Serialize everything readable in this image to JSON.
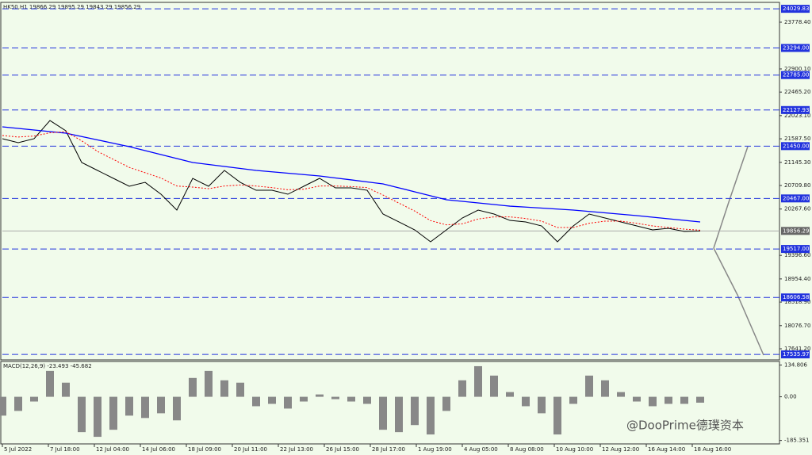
{
  "chart_data": [
    {
      "type": "line",
      "title": "HK50,H1  19866.29 19895.29 19843.29 19856.29",
      "xlim": [
        0,
        49
      ],
      "xticks": [
        {
          "value": 0,
          "label": "5 Jul 2022"
        },
        {
          "value": 2.9,
          "label": "7 Jul 18:00"
        },
        {
          "value": 5.8,
          "label": "12 Jul 04:00"
        },
        {
          "value": 8.7,
          "label": "14 Jul 06:00"
        },
        {
          "value": 11.6,
          "label": "18 Jul 09:00"
        },
        {
          "value": 14.5,
          "label": "20 Jul 11:00"
        },
        {
          "value": 17.4,
          "label": "22 Jul 13:00"
        },
        {
          "value": 20.3,
          "label": "26 Jul 15:00"
        },
        {
          "value": 23.2,
          "label": "28 Jul 17:00"
        },
        {
          "value": 26.1,
          "label": "1 Aug 19:00"
        },
        {
          "value": 29,
          "label": "4 Aug 05:00"
        },
        {
          "value": 31.9,
          "label": "8 Aug 08:00"
        },
        {
          "value": 34.8,
          "label": "10 Aug 10:00"
        },
        {
          "value": 37.7,
          "label": "12 Aug 12:00"
        },
        {
          "value": 40.6,
          "label": "16 Aug 14:00"
        },
        {
          "value": 43.5,
          "label": "18 Aug 16:00"
        }
      ],
      "ylim": [
        17433,
        24136
      ],
      "yticks": [
        {
          "value": 23778.4,
          "label": "23778.40"
        },
        {
          "value": 22900.1,
          "label": "22900.10"
        },
        {
          "value": 22465.2,
          "label": "22465.20"
        },
        {
          "value": 22023.1,
          "label": "22023.10"
        },
        {
          "value": 21587.5,
          "label": "21587.50"
        },
        {
          "value": 21145.3,
          "label": "21145.30"
        },
        {
          "value": 20709.8,
          "label": "20709.80"
        },
        {
          "value": 20267.6,
          "label": "20267.60"
        },
        {
          "value": 19396.6,
          "label": "19396.60"
        },
        {
          "value": 18954.4,
          "label": "18954.40"
        },
        {
          "value": 18518.9,
          "label": "18518.90"
        },
        {
          "value": 18076.7,
          "label": "18076.70"
        },
        {
          "value": 17641.2,
          "label": "17641.20"
        }
      ],
      "levels": [
        24029.83,
        {
          "value": 23294,
          "label": "23294.00"
        },
        {
          "value": 22785,
          "label": "22785.00"
        },
        22127.93,
        {
          "value": 21450,
          "label": "21450.00"
        },
        {
          "value": 20467,
          "label": "20467.00"
        },
        {
          "value": 19517,
          "label": "19517.00"
        },
        18606.58,
        17535.97
      ],
      "level_color": "#2233dd",
      "current_price": 19856.29,
      "series": [
        {
          "color": "#000000",
          "values": [
            21589,
            21514,
            21589,
            21931,
            21738,
            21142,
            20993,
            20844,
            20695,
            20769,
            20546,
            20248,
            20844,
            20695,
            20993,
            20769,
            20620,
            20620,
            20546,
            20695,
            20844,
            20665,
            20665,
            20620,
            20174,
            20025,
            19876,
            19652,
            19876,
            20099,
            20248,
            20174,
            20054,
            20025,
            19950,
            19652,
            19950,
            20174,
            20099,
            20025,
            19950,
            19876,
            19906,
            19846,
            19856
          ]
        },
        {
          "color": "#0000ff",
          "values": [
            21812,
            21782,
            21753,
            21723,
            21693,
            21630,
            21567,
            21503,
            21440,
            21366,
            21291,
            21217,
            21142,
            21105,
            21068,
            21030,
            20993,
            20967,
            20941,
            20915,
            20889,
            20852,
            20815,
            20777,
            20740,
            20666,
            20591,
            20517,
            20442,
            20412,
            20382,
            20352,
            20322,
            20304,
            20285,
            20267,
            20248,
            20222,
            20196,
            20170,
            20144,
            20114,
            20085,
            20055,
            20025
          ]
        },
        {
          "color": "#ff0000",
          "values": [
            21650,
            21620,
            21640,
            21700,
            21720,
            21550,
            21350,
            21200,
            21050,
            20950,
            20850,
            20700,
            20680,
            20650,
            20700,
            20720,
            20700,
            20670,
            20630,
            20640,
            20700,
            20700,
            20690,
            20670,
            20530,
            20380,
            20230,
            20050,
            19970,
            19990,
            20080,
            20120,
            20120,
            20090,
            20040,
            19920,
            19920,
            20000,
            20040,
            20040,
            20000,
            19950,
            19920,
            19890,
            19870
          ]
        }
      ]
    },
    {
      "type": "bar",
      "title": "MACD(12,26,9) -23.493 -45.682",
      "ylim": [
        -200,
        150
      ],
      "yticks": [
        134.806,
        {
          "value": 0,
          "label": "0.00"
        },
        -185.351
      ],
      "color": "#888888",
      "values": [
        -80,
        -60,
        -20,
        110,
        60,
        -150,
        -170,
        -140,
        -80,
        -90,
        -70,
        -100,
        80,
        110,
        70,
        60,
        -40,
        -30,
        -50,
        -20,
        10,
        -10,
        -20,
        -30,
        -140,
        -150,
        -120,
        -160,
        -60,
        70,
        130,
        90,
        20,
        -40,
        -70,
        -160,
        -30,
        90,
        70,
        20,
        -20,
        -40,
        -30,
        -30,
        -25
      ]
    }
  ],
  "watermark": "@DooPrime德璞资本"
}
